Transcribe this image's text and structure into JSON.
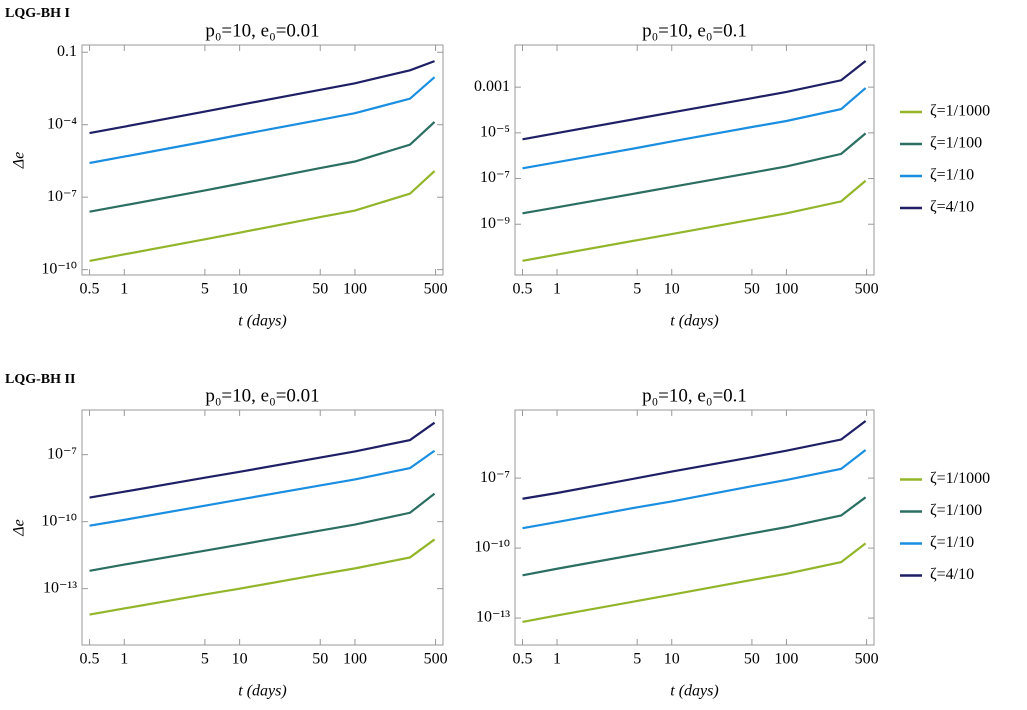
{
  "sections": [
    {
      "label": "LQG-BH I"
    },
    {
      "label": "LQG-BH II"
    }
  ],
  "chart_data": [
    {
      "type": "line",
      "title": "p₀=10, e₀=0.01",
      "xlabel": "t (days)",
      "ylabel": "Δe",
      "xscale": "log",
      "yscale": "log",
      "xlim": [
        0.43,
        580
      ],
      "ylim": [
        6e-11,
        0.2
      ],
      "xticks": [
        0.5,
        1,
        5,
        10,
        50,
        100,
        500
      ],
      "yticks": [
        0.1,
        {
          "value": 0.0001,
          "label": "10⁻⁴"
        },
        {
          "value": 1e-07,
          "label": "10⁻⁷"
        },
        {
          "value": 1e-10,
          "label": "10⁻¹⁰"
        }
      ],
      "x": [
        0.5,
        1,
        5,
        10,
        50,
        100,
        300,
        490
      ],
      "series": [
        {
          "name": "ζ=1/1000",
          "color": "#93b52a",
          "values": [
            2.3e-10,
            4.3e-10,
            1.8e-09,
            3.4e-09,
            1.5e-08,
            2.8e-08,
            1.4e-07,
            1.2e-06
          ]
        },
        {
          "name": "ζ=1/100",
          "color": "#2b6e62",
          "values": [
            2.5e-08,
            4.6e-08,
            1.9e-07,
            3.6e-07,
            1.6e-06,
            3e-06,
            1.5e-05,
            0.00013
          ]
        },
        {
          "name": "ζ=1/10",
          "color": "#1a8ee0",
          "values": [
            2.6e-06,
            4.8e-06,
            2e-05,
            3.8e-05,
            0.00016,
            0.0003,
            0.0012,
            0.0093
          ]
        },
        {
          "name": "ζ=4/10",
          "color": "#1f1f66",
          "values": [
            4.5e-05,
            8.3e-05,
            0.00035,
            0.00066,
            0.0028,
            0.0052,
            0.018,
            0.043
          ]
        }
      ]
    },
    {
      "type": "line",
      "title": "p₀=10, e₀=0.1",
      "xlabel": "t (days)",
      "xscale": "log",
      "yscale": "log",
      "legend": true,
      "xlim": [
        0.43,
        580
      ],
      "ylim": [
        6e-12,
        0.07
      ],
      "xticks": [
        0.5,
        1,
        5,
        10,
        50,
        100,
        500
      ],
      "yticks": [
        0.001,
        {
          "value": 1e-05,
          "label": "10⁻⁵"
        },
        {
          "value": 1e-07,
          "label": "10⁻⁷"
        },
        {
          "value": 1e-09,
          "label": "10⁻⁹"
        }
      ],
      "x": [
        0.5,
        1,
        5,
        10,
        50,
        100,
        300,
        490
      ],
      "series": [
        {
          "name": "ζ=1/1000",
          "color": "#93b52a",
          "values": [
            2.5e-11,
            4.7e-11,
            2e-10,
            3.7e-10,
            1.6e-09,
            3e-09,
            1e-08,
            8e-08
          ]
        },
        {
          "name": "ζ=1/100",
          "color": "#2b6e62",
          "values": [
            3e-09,
            5.5e-09,
            2.3e-08,
            4.3e-08,
            1.8e-07,
            3.4e-07,
            1.2e-06,
            9.5e-06
          ]
        },
        {
          "name": "ζ=1/10",
          "color": "#1a8ee0",
          "values": [
            2.8e-07,
            5.2e-07,
            2.2e-06,
            4.2e-06,
            1.8e-05,
            3.3e-05,
            0.00011,
            0.00091
          ]
        },
        {
          "name": "ζ=4/10",
          "color": "#1f1f66",
          "values": [
            5.2e-06,
            9.8e-06,
            4.2e-05,
            7.8e-05,
            0.00033,
            0.00062,
            0.002,
            0.014
          ]
        }
      ]
    },
    {
      "type": "line",
      "title": "p₀=10, e₀=0.01",
      "xlabel": "t (days)",
      "ylabel": "Δe",
      "xscale": "log",
      "yscale": "log",
      "xlim": [
        0.43,
        580
      ],
      "ylim": [
        3e-16,
        1e-05
      ],
      "xticks": [
        0.5,
        1,
        5,
        10,
        50,
        100,
        500
      ],
      "yticks": [
        {
          "value": 1e-07,
          "label": "10⁻⁷"
        },
        {
          "value": 1e-10,
          "label": "10⁻¹⁰"
        },
        {
          "value": 1e-13,
          "label": "10⁻¹³"
        }
      ],
      "x": [
        0.5,
        1,
        5,
        10,
        50,
        100,
        300,
        490
      ],
      "series": [
        {
          "name": "ζ=1/1000",
          "color": "#93b52a",
          "values": [
            6.9e-15,
            1.3e-14,
            5.5e-14,
            1e-13,
            4.4e-13,
            8.1e-13,
            2.5e-12,
            1.6e-11
          ]
        },
        {
          "name": "ζ=1/100",
          "color": "#2b6e62",
          "values": [
            6.3e-13,
            1.2e-12,
            5e-12,
            9.3e-12,
            4e-11,
            7.4e-11,
            2.5e-10,
            1.8e-09
          ]
        },
        {
          "name": "ζ=1/10",
          "color": "#1a8ee0",
          "values": [
            6.6e-11,
            1.2e-10,
            5.2e-10,
            9.8e-10,
            4.2e-09,
            7.8e-09,
            2.5e-08,
            1.5e-07
          ]
        },
        {
          "name": "ζ=4/10",
          "color": "#1f1f66",
          "values": [
            1.2e-09,
            2.2e-09,
            9.3e-09,
            1.7e-08,
            7.4e-08,
            1.4e-07,
            4.5e-07,
            2.7e-06
          ]
        }
      ]
    },
    {
      "type": "line",
      "title": "p₀=10, e₀=0.1",
      "xlabel": "t (days)",
      "xscale": "log",
      "yscale": "log",
      "legend": true,
      "xlim": [
        0.43,
        580
      ],
      "ylim": [
        7e-15,
        8.3e-05
      ],
      "xticks": [
        0.5,
        1,
        5,
        10,
        50,
        100,
        500
      ],
      "yticks": [
        {
          "value": 1e-07,
          "label": "10⁻⁷"
        },
        {
          "value": 1e-10,
          "label": "10⁻¹⁰"
        },
        {
          "value": 1e-13,
          "label": "10⁻¹³"
        }
      ],
      "x": [
        0.5,
        1,
        5,
        10,
        50,
        100,
        300,
        490
      ],
      "series": [
        {
          "name": "ζ=1/1000",
          "color": "#93b52a",
          "values": [
            6.8e-14,
            1.3e-13,
            5.4e-13,
            1e-12,
            4.3e-12,
            7.9e-12,
            2.5e-11,
            1.6e-10
          ]
        },
        {
          "name": "ζ=1/100",
          "color": "#2b6e62",
          "values": [
            6.8e-12,
            1.3e-11,
            5.4e-11,
            1e-10,
            4.3e-10,
            7.9e-10,
            2.5e-09,
            1.5e-08
          ]
        },
        {
          "name": "ζ=1/10",
          "color": "#1a8ee0",
          "values": [
            7.1e-10,
            1.3e-09,
            5.6e-09,
            1e-08,
            4.5e-08,
            8.3e-08,
            2.5e-07,
            1.6e-06
          ]
        },
        {
          "name": "ζ=4/10",
          "color": "#1f1f66",
          "values": [
            1.3e-08,
            2.3e-08,
            1e-07,
            1.9e-07,
            7.9e-07,
            1.5e-06,
            4.5e-06,
            2.8e-05
          ]
        }
      ]
    }
  ]
}
